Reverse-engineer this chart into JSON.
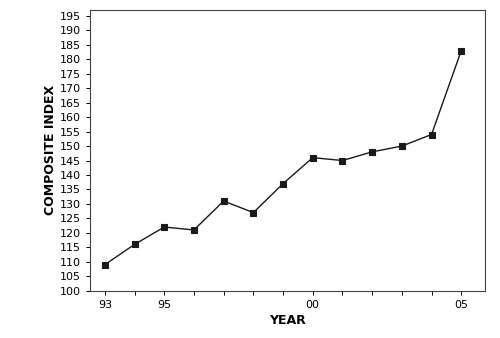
{
  "years": [
    1993,
    1994,
    1995,
    1996,
    1997,
    1998,
    1999,
    2000,
    2001,
    2002,
    2003,
    2004,
    2005
  ],
  "composite_index": [
    109,
    116,
    122,
    121,
    131,
    127,
    137,
    146,
    145,
    148,
    150,
    154,
    183
  ],
  "xlim": [
    1992.5,
    2005.8
  ],
  "ylim": [
    100,
    197
  ],
  "yticks": [
    100,
    105,
    110,
    115,
    120,
    125,
    130,
    135,
    140,
    145,
    150,
    155,
    160,
    165,
    170,
    175,
    180,
    185,
    190,
    195
  ],
  "xtick_positions": [
    1993,
    1994,
    1995,
    1996,
    1997,
    1998,
    1999,
    2000,
    2001,
    2002,
    2003,
    2004,
    2005
  ],
  "xtick_label_positions": [
    1993,
    1995,
    2000,
    2005
  ],
  "xtick_labels": [
    "93",
    "95",
    "00",
    "05"
  ],
  "xlabel": "YEAR",
  "ylabel": "COMPOSITE INDEX",
  "line_color": "#1a1a1a",
  "marker": "s",
  "marker_size": 4,
  "marker_color": "#1a1a1a",
  "background_color": "#ffffff",
  "axes_background": "#ffffff",
  "line_width": 1.0,
  "label_fontsize": 9,
  "tick_fontsize": 8,
  "spine_color": "#444444",
  "spine_linewidth": 0.8
}
